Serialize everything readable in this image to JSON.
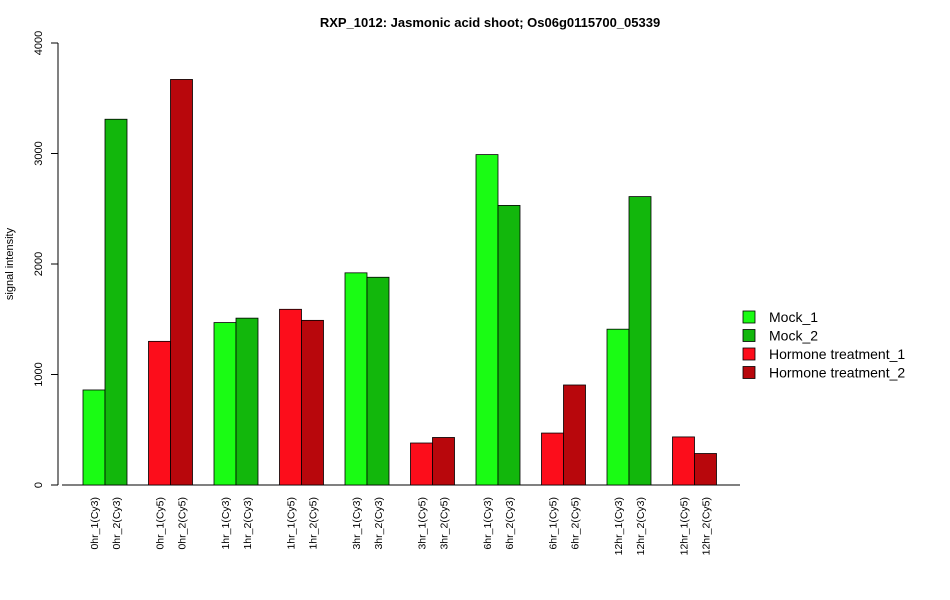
{
  "chart_data": {
    "type": "bar",
    "title": "RXP_1012: Jasmonic acid shoot; Os06g0115700_05339",
    "ylabel": "signal intensity",
    "xlabel": "",
    "ylim": [
      0,
      4000
    ],
    "yticks": [
      0,
      1000,
      2000,
      3000,
      4000
    ],
    "legend_position": "right",
    "groups": [
      {
        "labels": [
          "0hr_1(Cy3)",
          "0hr_2(Cy3)"
        ],
        "series": [
          "Mock_1",
          "Mock_2"
        ],
        "values": [
          860,
          3310
        ]
      },
      {
        "labels": [
          "0hr_1(Cy5)",
          "0hr_2(Cy5)"
        ],
        "series": [
          "Hormone treatment_1",
          "Hormone treatment_2"
        ],
        "values": [
          1300,
          3670
        ]
      },
      {
        "labels": [
          "1hr_1(Cy3)",
          "1hr_2(Cy3)"
        ],
        "series": [
          "Mock_1",
          "Mock_2"
        ],
        "values": [
          1470,
          1510
        ]
      },
      {
        "labels": [
          "1hr_1(Cy5)",
          "1hr_2(Cy5)"
        ],
        "series": [
          "Hormone treatment_1",
          "Hormone treatment_2"
        ],
        "values": [
          1590,
          1490
        ]
      },
      {
        "labels": [
          "3hr_1(Cy3)",
          "3hr_2(Cy3)"
        ],
        "series": [
          "Mock_1",
          "Mock_2"
        ],
        "values": [
          1920,
          1880
        ]
      },
      {
        "labels": [
          "3hr_1(Cy5)",
          "3hr_2(Cy5)"
        ],
        "series": [
          "Hormone treatment_1",
          "Hormone treatment_2"
        ],
        "values": [
          380,
          430
        ]
      },
      {
        "labels": [
          "6hr_1(Cy3)",
          "6hr_2(Cy3)"
        ],
        "series": [
          "Mock_1",
          "Mock_2"
        ],
        "values": [
          2990,
          2530
        ]
      },
      {
        "labels": [
          "6hr_1(Cy5)",
          "6hr_2(Cy5)"
        ],
        "series": [
          "Hormone treatment_1",
          "Hormone treatment_2"
        ],
        "values": [
          470,
          905
        ]
      },
      {
        "labels": [
          "12hr_1(Cy3)",
          "12hr_2(Cy3)"
        ],
        "series": [
          "Mock_1",
          "Mock_2"
        ],
        "values": [
          1410,
          2610
        ]
      },
      {
        "labels": [
          "12hr_1(Cy5)",
          "12hr_2(Cy5)"
        ],
        "series": [
          "Hormone treatment_1",
          "Hormone treatment_2"
        ],
        "values": [
          435,
          285
        ]
      }
    ],
    "legend": [
      {
        "name": "Mock_1",
        "color": "#1afc14"
      },
      {
        "name": "Mock_2",
        "color": "#12b70c"
      },
      {
        "name": "Hormone treatment_1",
        "color": "#fc0d1b"
      },
      {
        "name": "Hormone treatment_2",
        "color": "#b8070c"
      }
    ]
  }
}
